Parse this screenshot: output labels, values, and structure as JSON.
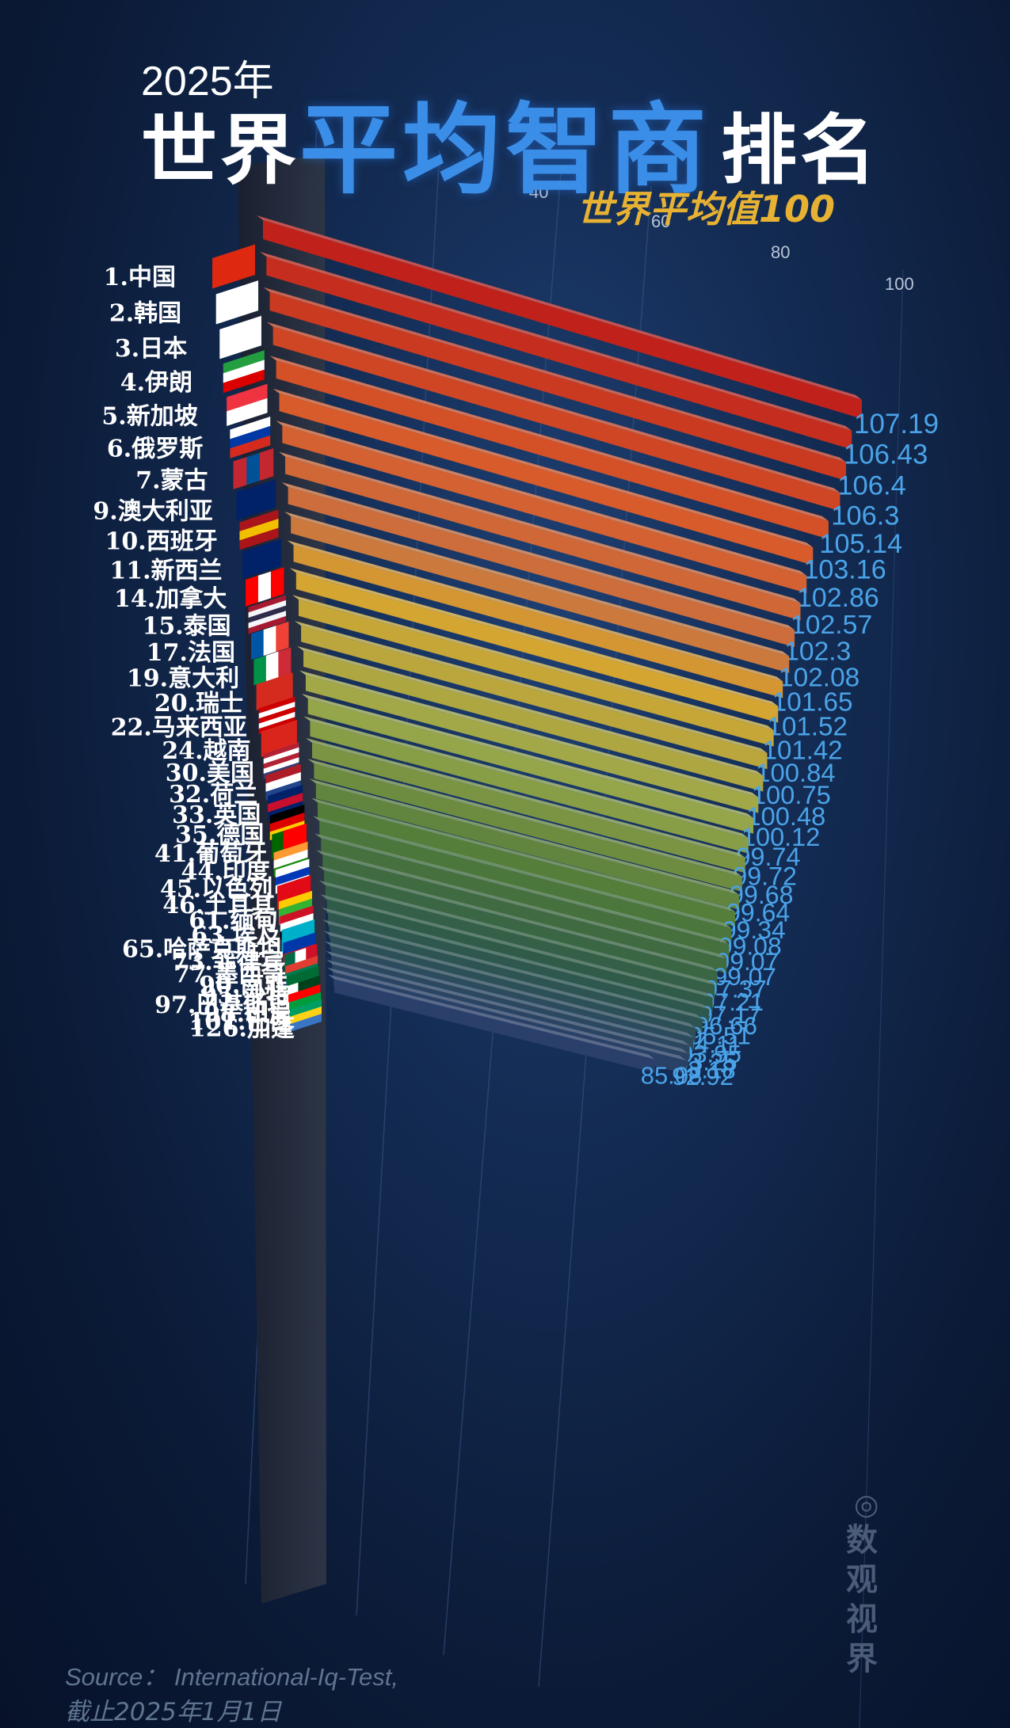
{
  "header": {
    "year": "2025年",
    "title_prefix": "世界",
    "title_highlight": "平均智商",
    "title_suffix": "排名",
    "subtitle": "世界平均值100"
  },
  "footer": {
    "source": "Source： International-Iq-Test,",
    "date": "截止2025年1月1日"
  },
  "watermark": {
    "icon": "circle-logo-icon",
    "text": "数观视界"
  },
  "colors": {
    "background": "#0b1a36",
    "title_highlight": "#3b8ee8",
    "subtitle": "#e7b233",
    "value_label": "#4aa3e8",
    "rank_label": "#ffffff"
  },
  "chart_data": {
    "type": "bar",
    "title": "2025年世界平均智商排名",
    "subtitle": "世界平均值100",
    "axis_ticks": [
      "40",
      "60",
      "80",
      "100"
    ],
    "categories": [
      "1.中国",
      "2.韩国",
      "3.日本",
      "4.伊朗",
      "5.新加坡",
      "6.俄罗斯",
      "7.蒙古",
      "9.澳大利亚",
      "10.西班牙",
      "11.新西兰",
      "14.加拿大",
      "15.泰国",
      "17.法国",
      "19.意大利",
      "20.瑞士",
      "22.马来西亚",
      "24.越南",
      "30.美国",
      "32.荷兰",
      "33.英国",
      "35.德国",
      "41.葡萄牙",
      "44.印度",
      "45.以色列",
      "46.土耳其",
      "61.缅甸",
      "63.埃及",
      "65.哈萨克斯坦",
      "73.菲律宾",
      "77.墨西哥",
      "90.南非",
      "95.沙特",
      "97.巴基斯坦",
      "98.印尼",
      "101.巴西",
      "126.加蓬"
    ],
    "value_labels": [
      "107.19",
      "106.43",
      "106.4",
      "106.3",
      "105.14",
      "103.16",
      "102.86",
      "102.57",
      "102.3",
      "102.08",
      "101.65",
      "101.52",
      "101.42",
      "100.84",
      "100.75",
      "100.48",
      "100.12",
      "99.74",
      "99.72",
      "99.68",
      "99.64",
      "99.34",
      "99.08",
      "99.07",
      "99.07",
      "97.37",
      "97.21",
      "97.17",
      "96.66",
      "95.51",
      "94.11",
      "93.95",
      "93.25",
      "93.18",
      "92.92",
      "85.08"
    ],
    "values": [
      107.19,
      106.43,
      106.4,
      106.3,
      105.14,
      103.16,
      102.86,
      102.57,
      102.3,
      102.08,
      101.65,
      101.52,
      101.42,
      100.84,
      100.75,
      100.48,
      100.12,
      99.74,
      99.72,
      99.68,
      99.64,
      99.34,
      99.08,
      99.07,
      99.07,
      97.37,
      97.21,
      97.17,
      96.66,
      95.51,
      94.11,
      93.95,
      93.25,
      93.18,
      92.92,
      85.08
    ],
    "flags": [
      {
        "colors": [
          "#de2910"
        ],
        "dir": "h"
      },
      {
        "colors": [
          "#ffffff"
        ],
        "dir": "h"
      },
      {
        "colors": [
          "#ffffff"
        ],
        "dir": "h"
      },
      {
        "colors": [
          "#239f40",
          "#ffffff",
          "#da0000"
        ],
        "dir": "h"
      },
      {
        "colors": [
          "#ef3340",
          "#ffffff"
        ],
        "dir": "h"
      },
      {
        "colors": [
          "#ffffff",
          "#0039a6",
          "#d52b1e"
        ],
        "dir": "h"
      },
      {
        "colors": [
          "#c4272f",
          "#015197",
          "#c4272f"
        ],
        "dir": "v"
      },
      {
        "colors": [
          "#012169"
        ],
        "dir": "h"
      },
      {
        "colors": [
          "#aa151b",
          "#f1bf00",
          "#aa151b"
        ],
        "dir": "h"
      },
      {
        "colors": [
          "#012169"
        ],
        "dir": "h"
      },
      {
        "colors": [
          "#ff0000",
          "#ffffff",
          "#ff0000"
        ],
        "dir": "v"
      },
      {
        "colors": [
          "#a51931",
          "#f4f5f8",
          "#2d2a4a",
          "#f4f5f8",
          "#a51931"
        ],
        "dir": "h"
      },
      {
        "colors": [
          "#0055a4",
          "#ffffff",
          "#ef4135"
        ],
        "dir": "v"
      },
      {
        "colors": [
          "#009246",
          "#ffffff",
          "#ce2b37"
        ],
        "dir": "v"
      },
      {
        "colors": [
          "#d52b1e"
        ],
        "dir": "h"
      },
      {
        "colors": [
          "#cc0001",
          "#ffffff",
          "#cc0001",
          "#ffffff",
          "#cc0001"
        ],
        "dir": "h"
      },
      {
        "colors": [
          "#da251d"
        ],
        "dir": "h"
      },
      {
        "colors": [
          "#b22234",
          "#ffffff",
          "#b22234",
          "#ffffff",
          "#3c3b6e"
        ],
        "dir": "h"
      },
      {
        "colors": [
          "#ae1c28",
          "#ffffff",
          "#21468b"
        ],
        "dir": "h"
      },
      {
        "colors": [
          "#012169",
          "#c8102e",
          "#012169"
        ],
        "dir": "h"
      },
      {
        "colors": [
          "#000000",
          "#dd0000",
          "#ffce00"
        ],
        "dir": "h"
      },
      {
        "colors": [
          "#006600",
          "#ff0000",
          "#ff0000"
        ],
        "dir": "v"
      },
      {
        "colors": [
          "#ff9933",
          "#ffffff",
          "#138808"
        ],
        "dir": "h"
      },
      {
        "colors": [
          "#ffffff",
          "#0038b8",
          "#ffffff"
        ],
        "dir": "h"
      },
      {
        "colors": [
          "#e30a17"
        ],
        "dir": "h"
      },
      {
        "colors": [
          "#fecb00",
          "#34b233",
          "#ea2839"
        ],
        "dir": "h"
      },
      {
        "colors": [
          "#ce1126",
          "#ffffff",
          "#000000"
        ],
        "dir": "h"
      },
      {
        "colors": [
          "#00afca"
        ],
        "dir": "h"
      },
      {
        "colors": [
          "#0038a8",
          "#ce1126"
        ],
        "dir": "h"
      },
      {
        "colors": [
          "#006847",
          "#ffffff",
          "#ce1126"
        ],
        "dir": "v"
      },
      {
        "colors": [
          "#e03c31",
          "#007a4d",
          "#001489"
        ],
        "dir": "h"
      },
      {
        "colors": [
          "#006c35"
        ],
        "dir": "h"
      },
      {
        "colors": [
          "#ffffff",
          "#01411c",
          "#01411c"
        ],
        "dir": "v"
      },
      {
        "colors": [
          "#ff0000",
          "#ffffff"
        ],
        "dir": "h"
      },
      {
        "colors": [
          "#009c3b"
        ],
        "dir": "h"
      },
      {
        "colors": [
          "#009e60",
          "#fcd116",
          "#3a75c4"
        ],
        "dir": "h"
      }
    ]
  }
}
